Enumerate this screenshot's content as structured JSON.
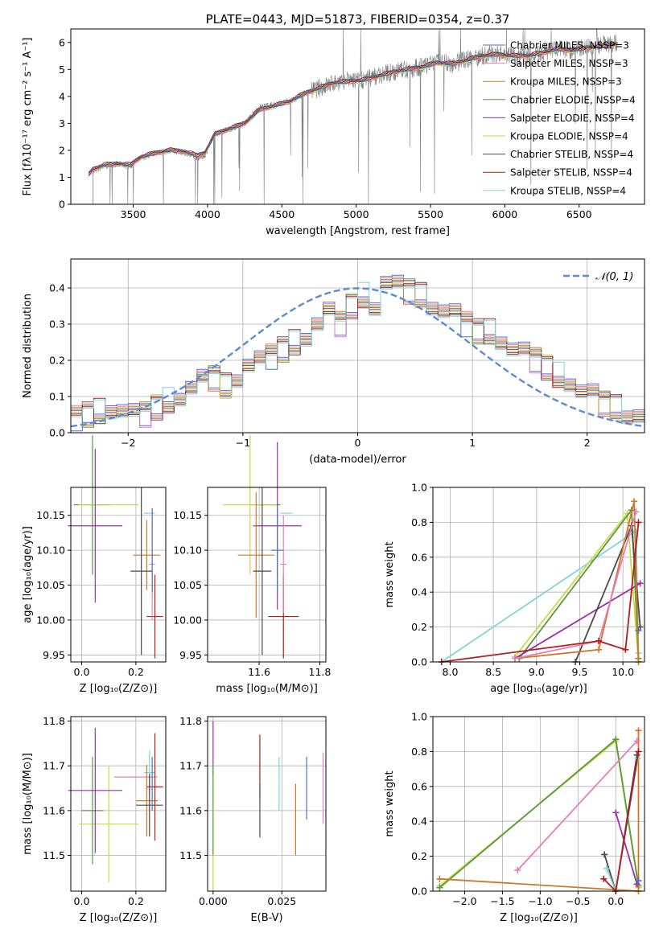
{
  "chart_data": [
    {
      "type": "line",
      "title": "PLATE=0443, MJD=51873, FIBERID=0354, z=0.37",
      "xlabel": "wavelength [Angstrom, rest frame]",
      "ylabel": "Flux [fλ10⁻¹⁷ erg cm⁻² s⁻¹ A⁻¹]",
      "xlim": [
        3080,
        6940
      ],
      "ylim": [
        0,
        6.5
      ],
      "xticks": [
        3500,
        4000,
        4500,
        5000,
        5500,
        6000,
        6500
      ],
      "yticks": [
        0,
        1,
        2,
        3,
        4,
        5,
        6
      ],
      "legend_position": "top-right",
      "grid": false,
      "observed": {
        "color": "#7f7f7f",
        "x": [
          3200,
          3230,
          3300,
          3400,
          3480,
          3550,
          3650,
          3750,
          3850,
          3930,
          3980,
          4050,
          4150,
          4250,
          4350,
          4450,
          4550,
          4650,
          4750,
          4850,
          4950,
          5050,
          5150,
          5250,
          5350,
          5450,
          5550,
          5650,
          5750,
          5850,
          5950,
          6050,
          6150,
          6250,
          6350,
          6450,
          6550,
          6650,
          6760
        ],
        "y": [
          0,
          1.2,
          1.4,
          1.5,
          1.4,
          1.7,
          1.9,
          2.0,
          1.9,
          1.7,
          1.8,
          2.6,
          2.8,
          3.0,
          3.6,
          3.7,
          3.8,
          4.1,
          4.3,
          4.5,
          4.6,
          4.6,
          4.8,
          4.9,
          5.0,
          5.1,
          5.3,
          5.2,
          5.4,
          5.5,
          5.6,
          5.5,
          5.5,
          5.6,
          5.8,
          5.7,
          5.8,
          5.9,
          6.0
        ]
      },
      "series": [
        {
          "name": "Chabrier MILES, N_SSP=3",
          "color": "#4f74c5"
        },
        {
          "name": "Salpeter MILES, N_SSP=3",
          "color": "#e77fb7"
        },
        {
          "name": "Kroupa MILES, N_SSP=3",
          "color": "#ce7a2b"
        },
        {
          "name": "Chabrier ELODIE, N_SSP=4",
          "color": "#5a9a3e"
        },
        {
          "name": "Salpeter ELODIE, N_SSP=4",
          "color": "#9b2fae"
        },
        {
          "name": "Kroupa ELODIE, N_SSP=4",
          "color": "#c8d94a"
        },
        {
          "name": "Chabrier STELIB, N_SSP=4",
          "color": "#4a4a4a"
        },
        {
          "name": "Salpeter STELIB, N_SSP=4",
          "color": "#b01e1e"
        },
        {
          "name": "Kroupa STELIB, N_SSP=4",
          "color": "#7dd6dc"
        }
      ],
      "model_curve": {
        "x": [
          3200,
          3230,
          3300,
          3400,
          3480,
          3550,
          3650,
          3750,
          3850,
          3930,
          3980,
          4050,
          4150,
          4250,
          4350,
          4450,
          4550,
          4650,
          4750,
          4850,
          4950,
          5050,
          5150,
          5250,
          5350,
          5450,
          5550,
          5650,
          5750,
          5850,
          5950,
          6050,
          6150,
          6250,
          6350,
          6450,
          6550,
          6650,
          6760
        ],
        "y": [
          1.1,
          1.3,
          1.45,
          1.5,
          1.45,
          1.75,
          1.9,
          2.0,
          1.95,
          1.8,
          1.9,
          2.6,
          2.8,
          3.0,
          3.5,
          3.65,
          3.8,
          4.1,
          4.3,
          4.5,
          4.55,
          4.6,
          4.75,
          4.9,
          5.0,
          5.1,
          5.25,
          5.2,
          5.35,
          5.5,
          5.55,
          5.5,
          5.5,
          5.6,
          5.75,
          5.7,
          5.8,
          5.85,
          5.95
        ]
      }
    },
    {
      "type": "line",
      "xlabel": "(data-model)/error",
      "ylabel": "Normed distribution",
      "xlim": [
        -2.5,
        2.5
      ],
      "ylim": [
        0,
        0.48
      ],
      "xticks": [
        -2,
        -1,
        0,
        1,
        2
      ],
      "yticks": [
        0.0,
        0.1,
        0.2,
        0.3,
        0.4
      ],
      "grid": true,
      "legend_position": "top-right",
      "reference": {
        "name": "𝒩(0, 1)",
        "color": "#5b8bd6",
        "mean": 0,
        "sigma": 1
      },
      "histogram": {
        "bin_width": 0.1,
        "x_start": -2.5,
        "density": [
          0.04,
          0.05,
          0.06,
          0.07,
          0.06,
          0.05,
          0.05,
          0.07,
          0.09,
          0.1,
          0.12,
          0.14,
          0.15,
          0.13,
          0.16,
          0.19,
          0.2,
          0.21,
          0.23,
          0.25,
          0.27,
          0.3,
          0.33,
          0.3,
          0.35,
          0.38,
          0.35,
          0.41,
          0.4,
          0.39,
          0.38,
          0.36,
          0.34,
          0.33,
          0.3,
          0.28,
          0.28,
          0.26,
          0.23,
          0.22,
          0.2,
          0.18,
          0.16,
          0.14,
          0.11,
          0.1,
          0.08,
          0.07,
          0.06,
          0.05
        ]
      }
    },
    {
      "type": "scatter",
      "xlabel": "Z [log₁₀(Z/Z⊙)]",
      "ylabel": "age  [log₁₀(age/yr)]",
      "xlim": [
        -0.04,
        0.31
      ],
      "ylim": [
        9.94,
        10.19
      ],
      "xticks": [
        0.0,
        0.2
      ],
      "yticks": [
        9.95,
        10.0,
        10.05,
        10.1,
        10.15
      ],
      "grid": true,
      "points": [
        {
          "x": 0.04,
          "y": 10.165,
          "xerr": 0.07,
          "yerr": 0.1,
          "color": "#5a9a3e"
        },
        {
          "x": 0.1,
          "y": 10.165,
          "xerr": 0.11,
          "yerr": 0.0,
          "color": "#c8d94a"
        },
        {
          "x": 0.05,
          "y": 10.135,
          "xerr": 0.1,
          "yerr": 0.11,
          "color": "#9b2fae"
        },
        {
          "x": 0.25,
          "y": 10.153,
          "xerr": 0.02,
          "yerr": 0.0,
          "color": "#7dd6dc"
        },
        {
          "x": 0.24,
          "y": 10.093,
          "xerr": 0.05,
          "yerr": 0.05,
          "color": "#ce7a2b"
        },
        {
          "x": 0.22,
          "y": 10.07,
          "xerr": 0.04,
          "yerr": 0.12,
          "color": "#4a4a4a"
        },
        {
          "x": 0.27,
          "y": 10.005,
          "xerr": 0.03,
          "yerr": 0.06,
          "color": "#b01e1e"
        },
        {
          "x": 0.26,
          "y": 10.08,
          "xerr": 0.01,
          "yerr": 0.08,
          "color": "#e77fb7"
        },
        {
          "x": 0.26,
          "y": 10.1,
          "xerr": 0.0,
          "yerr": 0.06,
          "color": "#4f74c5"
        }
      ]
    },
    {
      "type": "scatter",
      "xlabel": "mass [log₁₀(M/M⊙)]",
      "xlim": [
        11.43,
        11.82
      ],
      "ylim": [
        9.94,
        10.19
      ],
      "xticks": [
        11.6,
        11.8
      ],
      "yticks": [
        9.95,
        10.0,
        10.05,
        10.1,
        10.15
      ],
      "grid": true,
      "points": [
        {
          "x": 11.62,
          "y": 10.165,
          "xerr": 0.05,
          "yerr": 0.0,
          "color": "#5a9a3e"
        },
        {
          "x": 11.57,
          "y": 10.165,
          "xerr": 0.09,
          "yerr": 0.1,
          "color": "#c8d94a"
        },
        {
          "x": 11.66,
          "y": 10.135,
          "xerr": 0.08,
          "yerr": 0.12,
          "color": "#9b2fae"
        },
        {
          "x": 11.69,
          "y": 10.153,
          "xerr": 0.02,
          "yerr": 0.0,
          "color": "#7dd6dc"
        },
        {
          "x": 11.59,
          "y": 10.093,
          "xerr": 0.06,
          "yerr": 0.09,
          "color": "#ce7a2b"
        },
        {
          "x": 11.61,
          "y": 10.07,
          "xerr": 0.03,
          "yerr": 0.12,
          "color": "#4a4a4a"
        },
        {
          "x": 11.68,
          "y": 10.005,
          "xerr": 0.05,
          "yerr": 0.06,
          "color": "#b01e1e"
        },
        {
          "x": 11.68,
          "y": 10.08,
          "xerr": 0.01,
          "yerr": 0.07,
          "color": "#e77fb7"
        },
        {
          "x": 11.66,
          "y": 10.1,
          "xerr": 0.02,
          "yerr": 0.06,
          "color": "#4f74c5"
        }
      ]
    },
    {
      "type": "line",
      "xlabel": "age  [log₁₀(age/yr)]",
      "ylabel": "mass weight",
      "xlim": [
        7.8,
        10.25
      ],
      "ylim": [
        0,
        1.0
      ],
      "xticks": [
        8.0,
        8.5,
        9.0,
        9.5,
        10.0
      ],
      "yticks": [
        0.0,
        0.2,
        0.4,
        0.6,
        0.8,
        1.0
      ],
      "grid": true,
      "series": [
        {
          "color": "#7dd6dc",
          "x": [
            7.9,
            10.15,
            10.18
          ],
          "y": [
            0.0,
            0.75,
            0.05
          ]
        },
        {
          "color": "#c8d94a",
          "x": [
            8.75,
            10.05,
            10.18
          ],
          "y": [
            0.03,
            0.85,
            0.0
          ]
        },
        {
          "color": "#5a9a3e",
          "x": [
            8.8,
            10.1,
            10.18
          ],
          "y": [
            0.02,
            0.87,
            0.02
          ]
        },
        {
          "color": "#9b2fae",
          "x": [
            8.75,
            10.2
          ],
          "y": [
            0.02,
            0.45
          ]
        },
        {
          "color": "#4a4a4a",
          "x": [
            9.45,
            10.1,
            10.2
          ],
          "y": [
            0.0,
            0.78,
            0.2
          ]
        },
        {
          "color": "#ce7a2b",
          "x": [
            8.75,
            9.72,
            10.13,
            10.18
          ],
          "y": [
            0.02,
            0.07,
            0.92,
            0.0
          ]
        },
        {
          "color": "#e77fb7",
          "x": [
            8.75,
            9.72,
            10.15
          ],
          "y": [
            0.02,
            0.12,
            0.86
          ]
        },
        {
          "color": "#b01e1e",
          "x": [
            7.9,
            9.72,
            10.03,
            10.18
          ],
          "y": [
            0.0,
            0.12,
            0.07,
            0.8
          ]
        },
        {
          "color": "#4f74c5",
          "x": [
            10.18
          ],
          "y": [
            0.18
          ]
        }
      ]
    },
    {
      "type": "scatter",
      "xlabel": "Z [log₁₀(Z/Z⊙)]",
      "ylabel": "mass [log₁₀(M/M⊙)]",
      "xlim": [
        -0.04,
        0.31
      ],
      "ylim": [
        11.42,
        11.81
      ],
      "xticks": [
        0.0,
        0.2
      ],
      "yticks": [
        11.5,
        11.6,
        11.7,
        11.8
      ],
      "grid": true,
      "points": [
        {
          "x": 0.1,
          "y": 11.57,
          "xerr": 0.11,
          "yerr": 0.13,
          "color": "#c8d94a"
        },
        {
          "x": 0.04,
          "y": 11.6,
          "xerr": 0.04,
          "yerr": 0.12,
          "color": "#5a9a3e"
        },
        {
          "x": 0.05,
          "y": 11.645,
          "xerr": 0.1,
          "yerr": 0.14,
          "color": "#9b2fae"
        },
        {
          "x": 0.2,
          "y": 11.675,
          "xerr": 0.08,
          "yerr": 0.0,
          "color": "#e77fb7"
        },
        {
          "x": 0.25,
          "y": 11.685,
          "xerr": 0.02,
          "yerr": 0.05,
          "color": "#7dd6dc"
        },
        {
          "x": 0.24,
          "y": 11.622,
          "xerr": 0.04,
          "yerr": 0.08,
          "color": "#ce7a2b"
        },
        {
          "x": 0.25,
          "y": 11.612,
          "xerr": 0.05,
          "yerr": 0.07,
          "color": "#4a4a4a"
        },
        {
          "x": 0.27,
          "y": 11.653,
          "xerr": 0.03,
          "yerr": 0.12,
          "color": "#b01e1e"
        },
        {
          "x": 0.26,
          "y": 11.66,
          "xerr": 0.0,
          "yerr": 0.06,
          "color": "#4f74c5"
        }
      ]
    },
    {
      "type": "scatter",
      "xlabel": "E(B-V)",
      "xlim": [
        -0.002,
        0.041
      ],
      "ylim": [
        11.42,
        11.81
      ],
      "xticks": [
        0.0,
        0.025
      ],
      "yticks": [
        11.5,
        11.6,
        11.7,
        11.8
      ],
      "grid": true,
      "points": [
        {
          "x": 0.0,
          "y": 11.74,
          "yerr": 0.06,
          "color": "#9b2fae"
        },
        {
          "x": 0.0,
          "y": 11.55,
          "yerr": 0.13,
          "color": "#c8d94a"
        },
        {
          "x": 0.0,
          "y": 11.6,
          "yerr": 0.1,
          "color": "#5a9a3e"
        },
        {
          "x": 0.017,
          "y": 11.7,
          "yerr": 0.07,
          "color": "#b01e1e"
        },
        {
          "x": 0.017,
          "y": 11.6,
          "yerr": 0.06,
          "color": "#4a4a4a"
        },
        {
          "x": 0.024,
          "y": 11.66,
          "yerr": 0.06,
          "color": "#7dd6dc"
        },
        {
          "x": 0.03,
          "y": 11.58,
          "yerr": 0.08,
          "color": "#ce7a2b"
        },
        {
          "x": 0.034,
          "y": 11.65,
          "yerr": 0.07,
          "color": "#4f74c5"
        },
        {
          "x": 0.04,
          "y": 11.65,
          "yerr": 0.08,
          "color": "#e77fb7"
        }
      ]
    },
    {
      "type": "line",
      "xlabel": "Z [log₁₀(Z/Z⊙)]",
      "ylabel": "mass weight",
      "xlim": [
        -2.42,
        0.38
      ],
      "ylim": [
        0,
        1.0
      ],
      "xticks": [
        -2.0,
        -1.5,
        -1.0,
        -0.5,
        0.0
      ],
      "yticks": [
        0.0,
        0.2,
        0.4,
        0.6,
        0.8,
        1.0
      ],
      "grid": true,
      "series": [
        {
          "color": "#c8d94a",
          "x": [
            -2.33,
            0.0,
            0.3
          ],
          "y": [
            0.03,
            0.86,
            0.02
          ]
        },
        {
          "color": "#5a9a3e",
          "x": [
            -2.33,
            0.0,
            0.3
          ],
          "y": [
            0.02,
            0.87,
            0.03
          ]
        },
        {
          "color": "#ce7a2b",
          "x": [
            -2.33,
            0.3,
            0.3
          ],
          "y": [
            0.07,
            0.0,
            0.92
          ]
        },
        {
          "color": "#e77fb7",
          "x": [
            -1.3,
            0.28
          ],
          "y": [
            0.12,
            0.86
          ]
        },
        {
          "color": "#9b2fae",
          "x": [
            0.0,
            0.28
          ],
          "y": [
            0.45,
            0.04
          ]
        },
        {
          "color": "#4a4a4a",
          "x": [
            -0.15,
            0.0,
            0.28
          ],
          "y": [
            0.21,
            0.0,
            0.78
          ]
        },
        {
          "color": "#7dd6dc",
          "x": [
            -0.12,
            0.0,
            0.29
          ],
          "y": [
            0.13,
            0.0,
            0.76
          ]
        },
        {
          "color": "#b01e1e",
          "x": [
            -0.16,
            0.0,
            0.3
          ],
          "y": [
            0.07,
            0.0,
            0.8
          ]
        },
        {
          "color": "#4f74c5",
          "x": [
            0.3
          ],
          "y": [
            0.06
          ]
        }
      ]
    }
  ]
}
